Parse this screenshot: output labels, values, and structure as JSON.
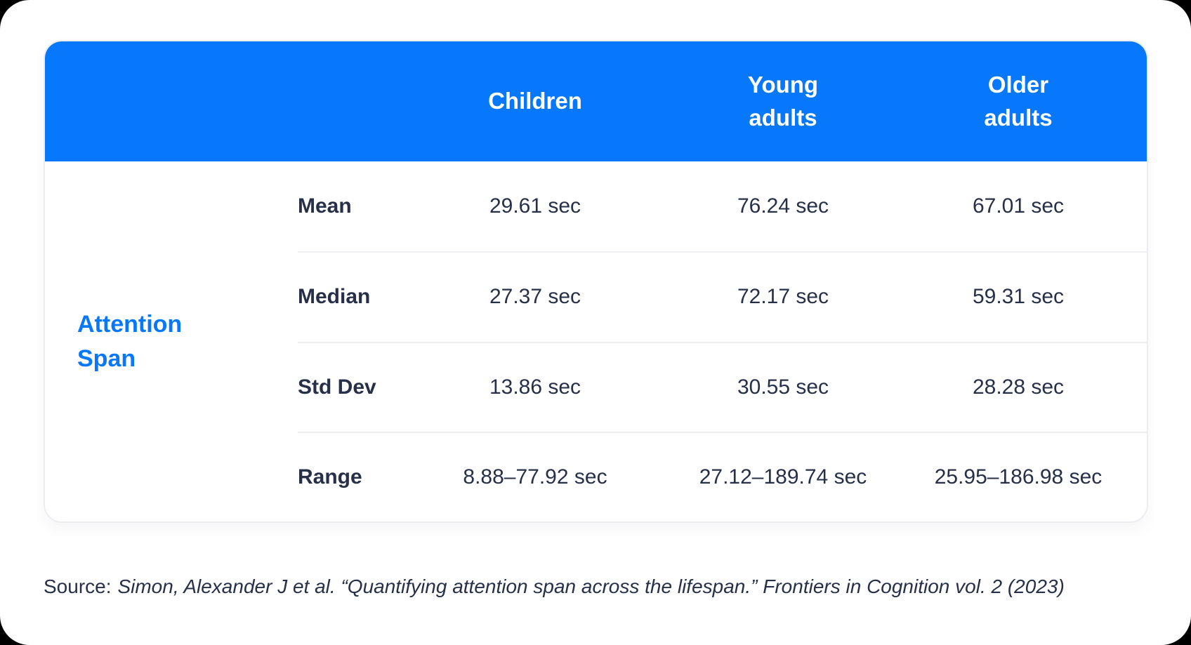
{
  "colors": {
    "accent_blue": "#0777fb",
    "header_text": "#ffffff",
    "body_text": "#273049",
    "divider": "#edeff3",
    "card_border": "#ecedf1",
    "surface": "#ffffff",
    "outer_background": "#000000"
  },
  "table": {
    "row_group_label": "Attention\nSpan",
    "column_headers": [
      "Children",
      "Young\nadults",
      "Older\nadults"
    ],
    "rows": [
      {
        "label": "Mean",
        "values": [
          "29.61 sec",
          "76.24 sec",
          "67.01 sec"
        ]
      },
      {
        "label": "Median",
        "values": [
          "27.37 sec",
          "72.17 sec",
          "59.31 sec"
        ]
      },
      {
        "label": "Std Dev",
        "values": [
          "13.86 sec",
          "30.55 sec",
          "28.28 sec"
        ]
      },
      {
        "label": "Range",
        "values": [
          "8.88–77.92 sec",
          "27.12–189.74 sec",
          "25.95–186.98 sec"
        ]
      }
    ]
  },
  "source": {
    "prefix": "Source:",
    "citation": "Simon, Alexander J et al. “Quantifying attention span across the lifespan.” Frontiers in Cognition vol. 2 (2023)"
  },
  "chart_data": {
    "type": "table",
    "title": "Attention Span",
    "row_group": "Attention Span",
    "columns": [
      "Children",
      "Young adults",
      "Older adults"
    ],
    "unit": "sec",
    "statistics": {
      "mean": [
        29.61,
        76.24,
        67.01
      ],
      "median": [
        27.37,
        72.17,
        59.31
      ],
      "std_dev": [
        13.86,
        30.55,
        28.28
      ],
      "range": [
        [
          8.88,
          77.92
        ],
        [
          27.12,
          189.74
        ],
        [
          25.95,
          186.98
        ]
      ]
    },
    "source": "Source: Simon, Alexander J et al. “Quantifying attention span across the lifespan.” Frontiers in Cognition vol. 2 (2023)"
  }
}
